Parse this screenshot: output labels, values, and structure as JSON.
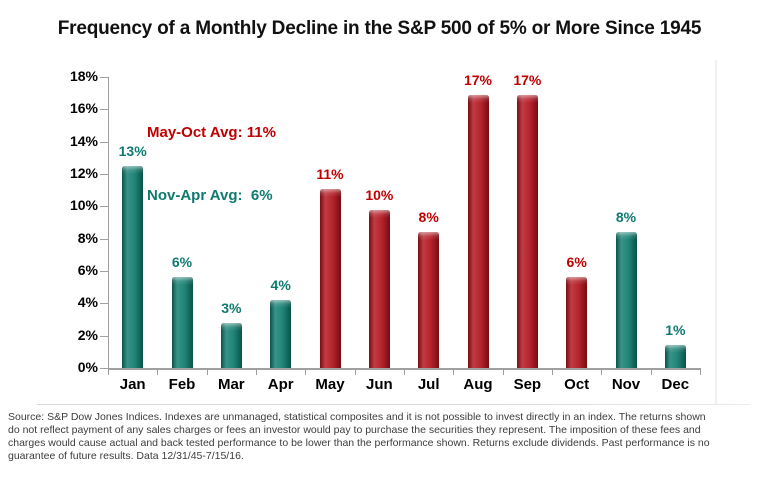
{
  "title": "Frequency of a Monthly Decline in the S&P 500 of 5% or More Since 1945",
  "legend": {
    "entries": [
      {
        "text": "May-Oct Avg: 11%",
        "group": "may_oct"
      },
      {
        "text": "Nov-Apr Avg:  6%",
        "group": "nov_apr"
      }
    ]
  },
  "colors": {
    "may_oct_bar": "#b0111a",
    "nov_apr_bar": "#0d7a6c",
    "may_oct_text": "#c00000",
    "nov_apr_text": "#0f7a70",
    "axis": "#9f9f9f",
    "title_text": "#111111",
    "source_text": "#3c3c3c"
  },
  "chart_data": {
    "type": "bar",
    "title": "Frequency of a Monthly Decline in the S&P 500 of 5% or More Since 1945",
    "categories": [
      "Jan",
      "Feb",
      "Mar",
      "Apr",
      "May",
      "Jun",
      "Jul",
      "Aug",
      "Sep",
      "Oct",
      "Nov",
      "Dec"
    ],
    "values": [
      12.5,
      5.6,
      2.8,
      4.2,
      11.1,
      9.8,
      8.4,
      16.9,
      16.9,
      5.6,
      8.4,
      1.4
    ],
    "labels": [
      "13%",
      "6%",
      "3%",
      "4%",
      "11%",
      "10%",
      "8%",
      "17%",
      "17%",
      "6%",
      "8%",
      "1%"
    ],
    "groups": [
      "nov_apr",
      "nov_apr",
      "nov_apr",
      "nov_apr",
      "may_oct",
      "may_oct",
      "may_oct",
      "may_oct",
      "may_oct",
      "may_oct",
      "nov_apr",
      "nov_apr"
    ],
    "xlabel": "",
    "ylabel": "",
    "ylim": [
      0,
      18
    ],
    "ytick_step": 2,
    "ytick_suffix": "%",
    "grid": false,
    "legend_position": "top-left-inside",
    "annotations": [
      "May-Oct Avg: 11%",
      "Nov-Apr Avg:  6%"
    ]
  },
  "source_lines": [
    "Source: S&P Dow Jones Indices. Indexes are unmanaged, statistical composites and it is not possible to invest directly in an index. The returns shown",
    "do not reflect payment of any sales charges or fees an investor would pay to purchase the securities they represent. The imposition of these fees and",
    "charges would cause actual and back tested performance to be lower than the performance shown. Returns exclude dividends. Past performance is no",
    "guarantee of future results. Data 12/31/45-7/15/16."
  ]
}
